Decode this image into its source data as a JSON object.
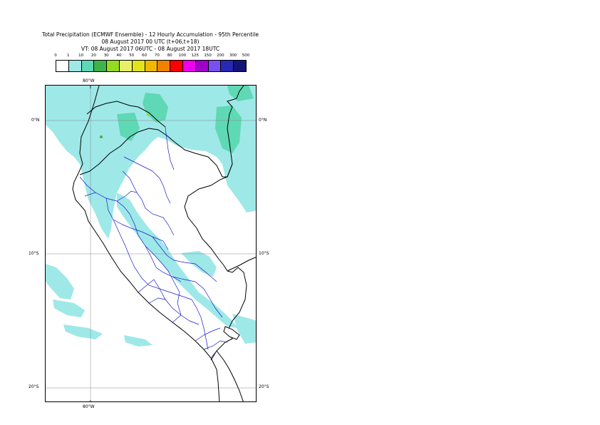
{
  "title": {
    "line1": "Total Precipitation (ECMWF Ensemble) - 12 Hourly Accumulation - 95th Percentile",
    "line2": "08 August 2017 00 UTC (t+06,t+18)",
    "line3": "VT: 08 August 2017 06UTC - 08 August 2017 18UTC"
  },
  "legend": {
    "labels": [
      "0",
      "1",
      "10",
      "20",
      "30",
      "40",
      "50",
      "60",
      "70",
      "80",
      "100",
      "125",
      "150",
      "200",
      "300",
      "500"
    ],
    "colors": [
      "#ffffff",
      "#9ee8e8",
      "#5fd8b4",
      "#3fb34a",
      "#94dc1e",
      "#e8f06a",
      "#e2e21e",
      "#f0b800",
      "#f08200",
      "#ff0000",
      "#ee00ee",
      "#a000c8",
      "#7850f0",
      "#2828b4",
      "#141478"
    ]
  },
  "map": {
    "lon_top": "80°W",
    "lon_bottom": "80°W",
    "lat_labels": [
      "0°N",
      "10°S",
      "20°S"
    ],
    "colors": {
      "land_border": "#000000",
      "admin_border": "#0000c8",
      "precip_light": "#9ee8e8",
      "precip_mid": "#5fd8b4"
    }
  }
}
